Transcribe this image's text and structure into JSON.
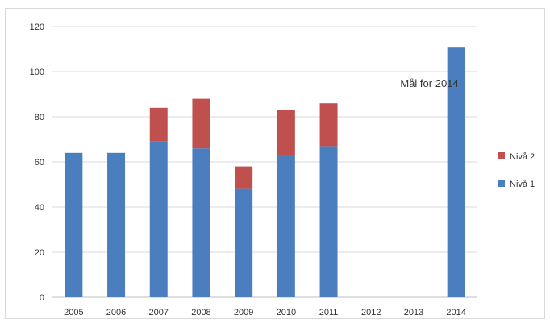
{
  "chart_data": {
    "type": "bar",
    "stacked": true,
    "categories": [
      "2005",
      "2006",
      "2007",
      "2008",
      "2009",
      "2010",
      "2011",
      "2012",
      "2013",
      "2014"
    ],
    "series": [
      {
        "name": "Nivå 1",
        "color": "#4a7ebf",
        "values": [
          64,
          64,
          69,
          66,
          48,
          63,
          67,
          0,
          0,
          111
        ]
      },
      {
        "name": "Nivå 2",
        "color": "#c0504d",
        "values": [
          0,
          0,
          15,
          22,
          10,
          20,
          19,
          0,
          0,
          0
        ]
      }
    ],
    "ylim": [
      0,
      120
    ],
    "yticks": [
      0,
      20,
      40,
      60,
      80,
      100,
      120
    ],
    "grid": true,
    "legend_position": "right",
    "annotation": {
      "text": "Mål for 2014",
      "category": "2014"
    },
    "title": "",
    "xlabel": "",
    "ylabel": ""
  }
}
